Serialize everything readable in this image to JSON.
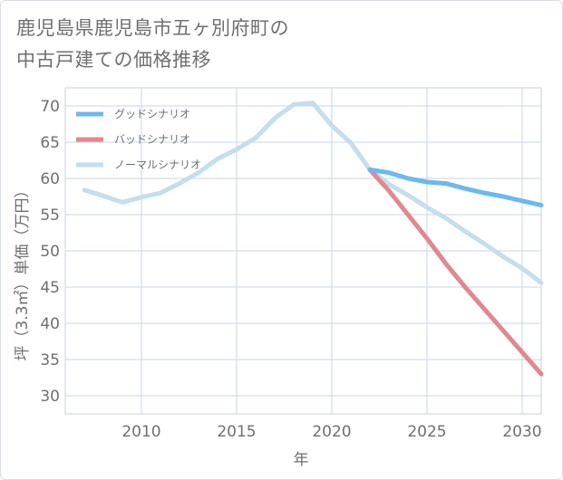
{
  "title_lines": [
    "鹿児島県鹿児島市五ヶ別府町の",
    "中古戸建ての価格推移"
  ],
  "chart_data": {
    "type": "line",
    "xlabel": "年",
    "ylabel": "坪（3.3㎡）単価（万円）",
    "xlim": [
      2006.0,
      2031.0
    ],
    "ylim": [
      27.5,
      72.5
    ],
    "xticks": [
      2010,
      2015,
      2020,
      2025,
      2030
    ],
    "yticks": [
      30,
      35,
      40,
      45,
      50,
      55,
      60,
      65,
      70
    ],
    "grid": true,
    "legend_position": "top-left",
    "series": [
      {
        "name": "グッドシナリオ",
        "color": "#6db8ec",
        "x": [
          2022,
          2023,
          2024,
          2025,
          2026,
          2027,
          2028,
          2029,
          2030,
          2031
        ],
        "y": [
          61.2,
          60.8,
          60.0,
          59.5,
          59.3,
          58.6,
          58.0,
          57.5,
          56.9,
          56.3
        ]
      },
      {
        "name": "バッドシナリオ",
        "color": "#e08891",
        "x": [
          2022,
          2023,
          2024,
          2025,
          2026,
          2027,
          2028,
          2029,
          2030,
          2031
        ],
        "y": [
          61.2,
          58.3,
          55.0,
          51.7,
          48.2,
          45.0,
          42.0,
          39.0,
          36.0,
          33.0
        ]
      },
      {
        "name": "ノーマルシナリオ",
        "color": "#c3deed",
        "x": [
          2007,
          2008,
          2009,
          2010,
          2011,
          2012,
          2013,
          2014,
          2015,
          2016,
          2017,
          2018,
          2019,
          2020,
          2021,
          2022,
          2023,
          2024,
          2025,
          2026,
          2027,
          2028,
          2029,
          2030,
          2031
        ],
        "y": [
          58.4,
          57.6,
          56.7,
          57.4,
          58.0,
          59.3,
          60.8,
          62.7,
          64.0,
          65.6,
          68.3,
          70.2,
          70.4,
          67.3,
          64.9,
          61.2,
          59.2,
          57.7,
          56.0,
          54.5,
          52.7,
          51.0,
          49.2,
          47.6,
          45.6
        ]
      }
    ]
  }
}
